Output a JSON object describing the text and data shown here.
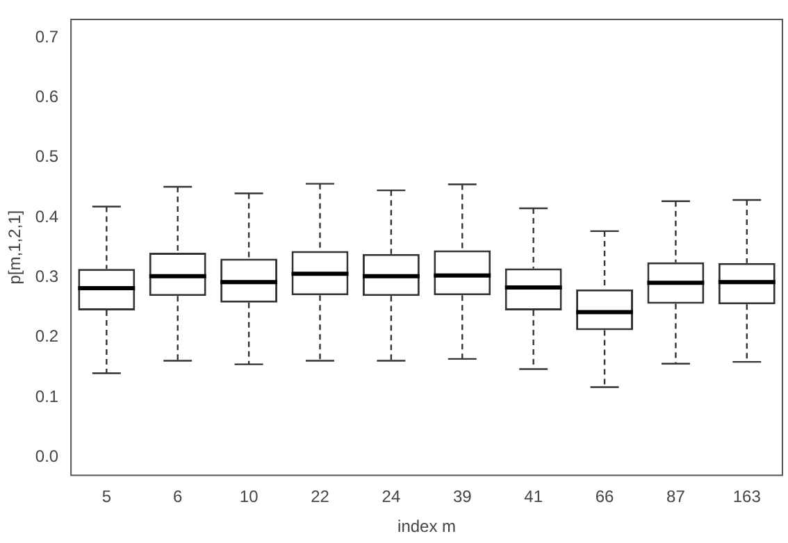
{
  "chart_data": {
    "type": "box",
    "xlabel": "index m",
    "ylabel": "p[m,1,2,1]",
    "categories": [
      "5",
      "6",
      "10",
      "22",
      "24",
      "39",
      "41",
      "66",
      "87",
      "163"
    ],
    "boxes": [
      {
        "low": 0.14,
        "q1": 0.245,
        "median": 0.282,
        "q3": 0.314,
        "high": 0.418
      },
      {
        "low": 0.161,
        "q1": 0.269,
        "median": 0.302,
        "q3": 0.341,
        "high": 0.451
      },
      {
        "low": 0.155,
        "q1": 0.258,
        "median": 0.292,
        "q3": 0.331,
        "high": 0.44
      },
      {
        "low": 0.161,
        "q1": 0.27,
        "median": 0.306,
        "q3": 0.344,
        "high": 0.456
      },
      {
        "low": 0.161,
        "q1": 0.269,
        "median": 0.302,
        "q3": 0.339,
        "high": 0.445
      },
      {
        "low": 0.164,
        "q1": 0.27,
        "median": 0.303,
        "q3": 0.345,
        "high": 0.455
      },
      {
        "low": 0.147,
        "q1": 0.245,
        "median": 0.283,
        "q3": 0.315,
        "high": 0.415
      },
      {
        "low": 0.117,
        "q1": 0.212,
        "median": 0.242,
        "q3": 0.28,
        "high": 0.377
      },
      {
        "low": 0.156,
        "q1": 0.256,
        "median": 0.291,
        "q3": 0.325,
        "high": 0.427
      },
      {
        "low": 0.159,
        "q1": 0.255,
        "median": 0.292,
        "q3": 0.324,
        "high": 0.429
      }
    ],
    "color": "#333333",
    "ylim": [
      -0.03,
      0.73
    ],
    "yticks": [
      {
        "value": 0,
        "label": "0.0"
      },
      0.1,
      0.2,
      0.3,
      0.4,
      0.5,
      0.6,
      0.7
    ],
    "grid": false,
    "legend": false
  }
}
